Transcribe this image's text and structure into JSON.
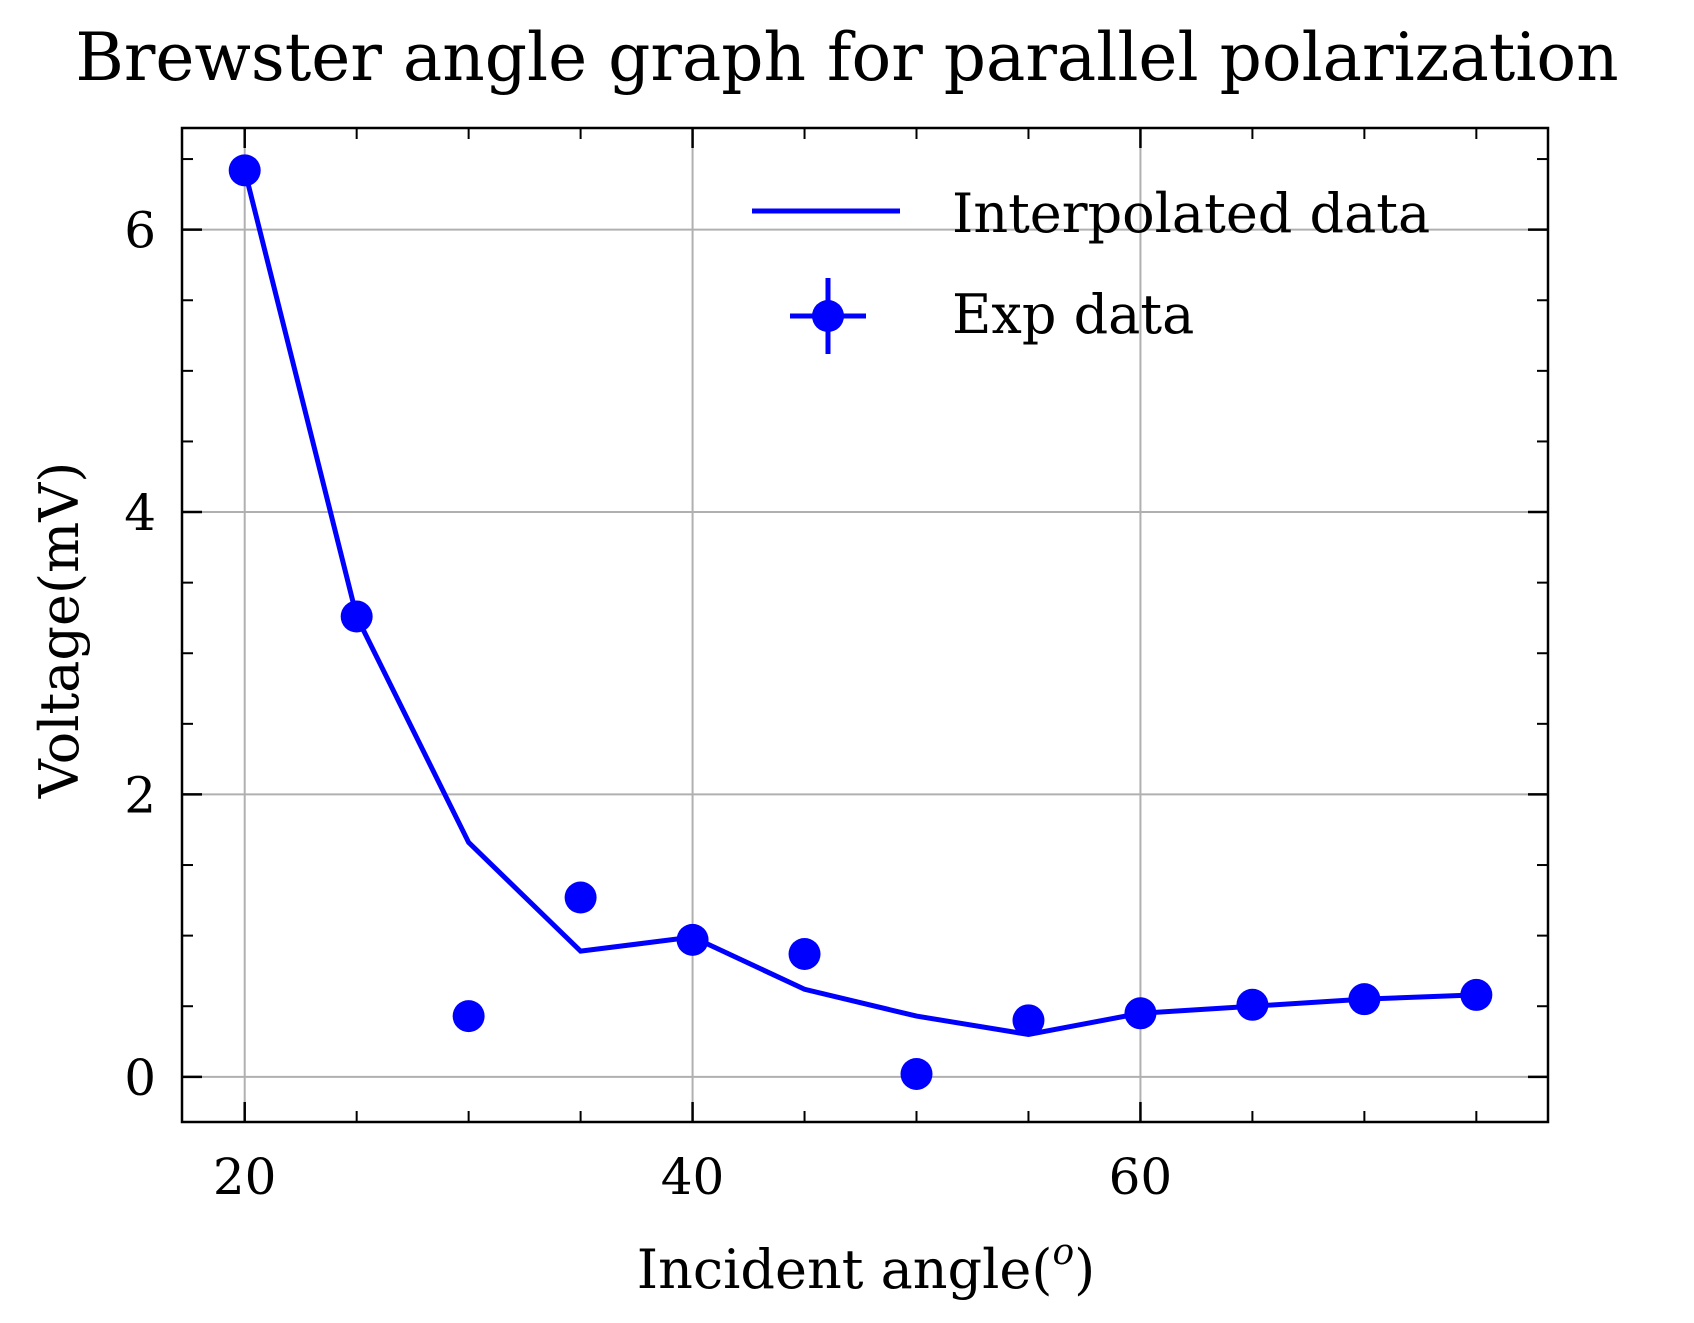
{
  "chart_data": {
    "type": "line",
    "title": "Brewster angle graph for parallel polarization",
    "xlabel": "Incident angle(",
    "xlabel_superscript": "o",
    "xlabel_suffix": ")",
    "ylabel": "Voltage(mV)",
    "xlim": [
      17.2,
      78.2
    ],
    "ylim": [
      -0.32,
      6.72
    ],
    "x_ticks": [
      20,
      40,
      60
    ],
    "x_tick_labels": [
      "20",
      "40",
      "60"
    ],
    "y_ticks": [
      0,
      2,
      4,
      6
    ],
    "y_tick_labels": [
      "0",
      "2",
      "4",
      "6"
    ],
    "x_minor_ticks": [
      25,
      30,
      35,
      45,
      50,
      55,
      65,
      70,
      75
    ],
    "y_minor_ticks": [
      0.5,
      1.0,
      1.5,
      2.5,
      3.0,
      3.5,
      4.5,
      5.0,
      5.5,
      6.5
    ],
    "grid": true,
    "legend_position": "top-right",
    "color": "#0000ff",
    "series": [
      {
        "name": "Interpolated data",
        "kind": "line",
        "x": [
          20,
          25,
          30,
          35,
          40,
          45,
          50,
          55,
          60,
          65,
          70,
          75
        ],
        "y": [
          6.42,
          3.26,
          1.66,
          0.89,
          0.99,
          0.62,
          0.43,
          0.3,
          0.45,
          0.5,
          0.55,
          0.58
        ]
      },
      {
        "name": "Exp data",
        "kind": "errorbar-scatter",
        "x": [
          20,
          25,
          30,
          35,
          40,
          45,
          50,
          55,
          60,
          65,
          70,
          75
        ],
        "y": [
          6.42,
          3.26,
          0.43,
          1.27,
          0.97,
          0.87,
          0.02,
          0.4,
          0.45,
          0.51,
          0.55,
          0.58
        ]
      }
    ]
  }
}
